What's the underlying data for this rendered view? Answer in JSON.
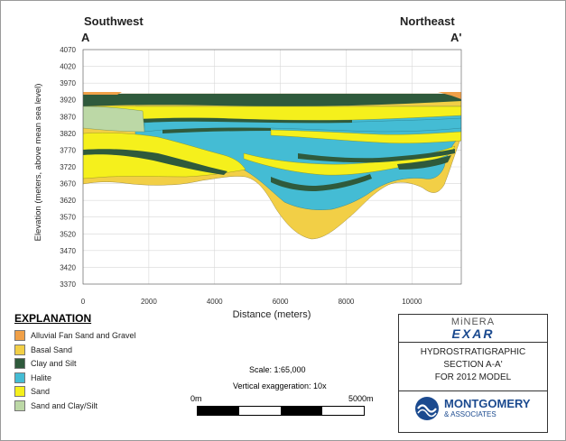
{
  "section": {
    "left_direction": "Southwest",
    "right_direction": "Northeast",
    "left_label": "A",
    "right_label": "A'"
  },
  "axes": {
    "ylabel": "Elevation (meters, above mean sea level)",
    "xlabel": "Distance (meters)",
    "yticks": [
      "4070",
      "4020",
      "3970",
      "3920",
      "3870",
      "3820",
      "3770",
      "3720",
      "3670",
      "3620",
      "3570",
      "3520",
      "3470",
      "3420",
      "3370"
    ],
    "xticks": [
      "0",
      "2000",
      "4000",
      "6000",
      "8000",
      "10000"
    ],
    "ylim": [
      3370,
      4070
    ],
    "xlim": [
      0,
      11500
    ],
    "grid": true
  },
  "explanation": {
    "title": "EXPLANATION",
    "items": [
      {
        "label": "Alluvial Fan Sand and Gravel",
        "color": "#f0a048"
      },
      {
        "label": "Basal Sand",
        "color": "#f2cf46"
      },
      {
        "label": "Clay and Silt",
        "color": "#2f5a3c"
      },
      {
        "label": "Halite",
        "color": "#44bcd4"
      },
      {
        "label": "Sand",
        "color": "#f5f01c"
      },
      {
        "label": "Sand and Clay/Silt",
        "color": "#bcd8a6"
      }
    ]
  },
  "scale": {
    "scale_text": "Scale: 1:65,000",
    "vertical_exaggeration": "Vertical exaggeration: 10x",
    "bar_start": "0m",
    "bar_end": "5000m"
  },
  "title_block": {
    "logo_top": "MiNERA",
    "logo_bottom": "EXAR",
    "lines": [
      "HYDROSTRATIGRAPHIC",
      "SECTION A-A'",
      "FOR 2012 MODEL"
    ],
    "company": "MONTGOMERY",
    "company_sub": "& ASSOCIATES"
  }
}
